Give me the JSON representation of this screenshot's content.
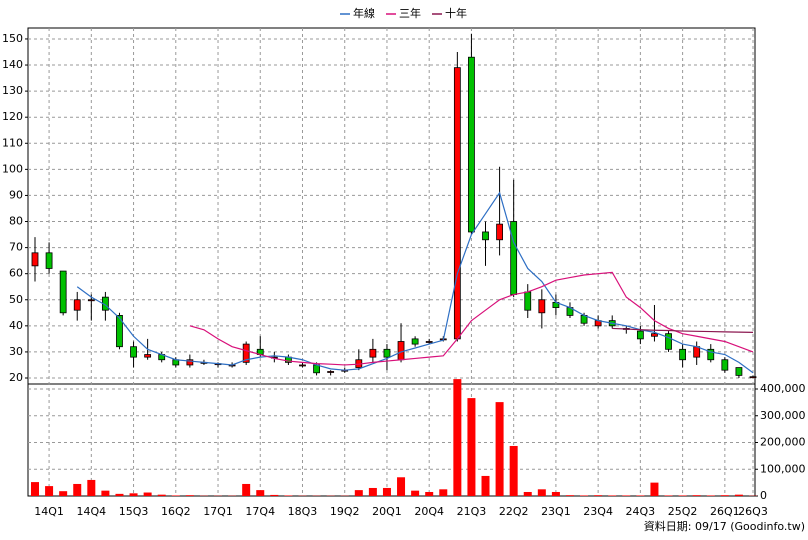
{
  "chart_data": {
    "type": "candlestick",
    "categories": [
      null,
      "14Q1",
      null,
      null,
      "14Q4",
      null,
      null,
      "15Q3",
      null,
      null,
      "16Q2",
      null,
      null,
      "17Q1",
      null,
      null,
      "17Q4",
      null,
      null,
      "18Q3",
      null,
      null,
      "19Q2",
      null,
      null,
      "20Q1",
      null,
      null,
      "20Q4",
      null,
      null,
      "21Q3",
      null,
      null,
      "22Q2",
      null,
      null,
      "23Q1",
      null,
      null,
      "23Q4",
      null,
      null,
      "24Q3",
      null,
      null,
      "25Q2",
      null,
      null,
      "26Q1",
      null,
      "26Q3"
    ],
    "open": [
      63,
      68,
      61,
      46,
      50,
      51,
      44,
      32,
      28,
      29,
      27,
      25,
      26,
      25.5,
      25,
      26,
      31,
      28,
      28,
      25,
      25,
      22.5,
      23,
      24,
      28,
      31,
      27,
      35,
      34,
      35,
      35,
      143,
      76,
      73,
      80,
      53,
      45,
      49,
      47,
      44,
      40,
      42,
      39,
      38,
      36,
      37,
      31,
      28,
      31,
      27,
      24,
      20.5
    ],
    "high": [
      74,
      72,
      61,
      53,
      52,
      53,
      45,
      34,
      35,
      30,
      28,
      29,
      27,
      26,
      26,
      34,
      36,
      30,
      29,
      26,
      26,
      23,
      24,
      31,
      35,
      33,
      41,
      36,
      35,
      36,
      145,
      152,
      80,
      101,
      96,
      56,
      54,
      52,
      49,
      45,
      44,
      44,
      40,
      40,
      48,
      38,
      33,
      34,
      33,
      28,
      24,
      21
    ],
    "low": [
      57,
      60,
      44,
      42,
      42,
      42,
      31,
      24,
      27,
      26,
      24,
      24,
      25,
      24,
      24,
      25,
      28,
      26,
      25,
      24,
      21,
      21,
      22,
      23,
      26,
      23,
      26,
      32,
      33,
      34,
      34,
      75,
      63,
      67,
      51,
      43,
      39,
      44,
      43,
      40,
      39,
      39,
      37,
      33,
      34,
      30,
      24,
      25,
      26,
      22,
      20,
      20
    ],
    "close": [
      68,
      62,
      45,
      50,
      50,
      46,
      32,
      28,
      29,
      27,
      25,
      27,
      26,
      25.5,
      25,
      33,
      29,
      28,
      26,
      25,
      22,
      22.5,
      23,
      27,
      31,
      28,
      34,
      33,
      34,
      35,
      139,
      76,
      73,
      79,
      52,
      46,
      50,
      47,
      44,
      41,
      42,
      40,
      39,
      35,
      37,
      31,
      27,
      32,
      27,
      23,
      21,
      20.5
    ],
    "up_color": "#ff0000",
    "down_color": "#00c000",
    "ylim": [
      17.7,
      154.2
    ],
    "yticks": [
      20,
      30,
      40,
      50,
      60,
      70,
      80,
      90,
      100,
      110,
      120,
      130,
      140,
      150
    ],
    "lines": [
      {
        "name": "年線",
        "color": "#2e6fc4",
        "values": [
          null,
          null,
          null,
          55,
          51,
          48,
          43,
          36,
          31,
          29,
          27,
          26.5,
          26,
          25.5,
          25,
          27,
          28,
          28.5,
          28,
          27,
          25,
          23.5,
          23,
          23.5,
          25.5,
          27.5,
          30,
          31.5,
          33,
          34.5,
          60,
          75,
          83,
          91,
          72,
          62,
          57,
          49,
          47,
          44,
          42,
          41,
          40,
          38.5,
          37.5,
          35.5,
          33,
          32,
          30,
          29,
          26,
          22
        ]
      },
      {
        "name": "三年",
        "color": "#d8107a",
        "values": [
          null,
          null,
          null,
          null,
          null,
          null,
          null,
          null,
          null,
          null,
          null,
          40,
          38.5,
          35,
          32,
          30.5,
          29,
          27.5,
          26.5,
          26,
          25.5,
          25.3,
          25,
          25.3,
          26,
          26.5,
          27,
          27.5,
          28,
          28.5,
          35,
          42,
          46,
          50,
          52,
          53,
          55,
          57.5,
          58.5,
          59.5,
          60,
          60.5,
          51,
          47,
          42,
          39,
          37,
          36,
          35,
          34,
          32,
          30
        ]
      },
      {
        "name": "十年",
        "color": "#8b1850",
        "values": [
          null,
          null,
          null,
          null,
          null,
          null,
          null,
          null,
          null,
          null,
          null,
          null,
          null,
          null,
          null,
          null,
          null,
          null,
          null,
          null,
          null,
          null,
          null,
          null,
          null,
          null,
          null,
          null,
          null,
          null,
          null,
          null,
          null,
          null,
          null,
          null,
          null,
          null,
          null,
          null,
          null,
          39,
          38.8,
          38.5,
          38.3,
          38.2,
          38,
          37.9,
          37.8,
          37.7,
          37.6,
          37.5
        ]
      }
    ],
    "volume": {
      "color": "#ff0000",
      "values": [
        52000,
        37000,
        18000,
        45000,
        60000,
        20000,
        8000,
        10000,
        13000,
        5000,
        2000,
        3000,
        1000,
        1000,
        1000,
        45000,
        22000,
        4000,
        2000,
        1000,
        1000,
        1000,
        1000,
        22000,
        30000,
        30000,
        70000,
        20000,
        15000,
        25000,
        437000,
        366000,
        75000,
        351000,
        187000,
        15000,
        25000,
        15000,
        3000,
        2000,
        3000,
        2000,
        2000,
        2000,
        50000,
        2000,
        2000,
        3000,
        2000,
        3000,
        5000,
        1000
      ],
      "ylim": [
        0,
        418700
      ],
      "yticks": [
        0,
        {
          "value": 100000,
          "label": "100,000"
        },
        {
          "value": 200000,
          "label": "200,000"
        },
        {
          "value": 300000,
          "label": "300,000"
        },
        {
          "value": 400000,
          "label": "400,000"
        }
      ]
    },
    "grid": true,
    "footer": "資料日期: 09/17  (Goodinfo.tw)"
  }
}
